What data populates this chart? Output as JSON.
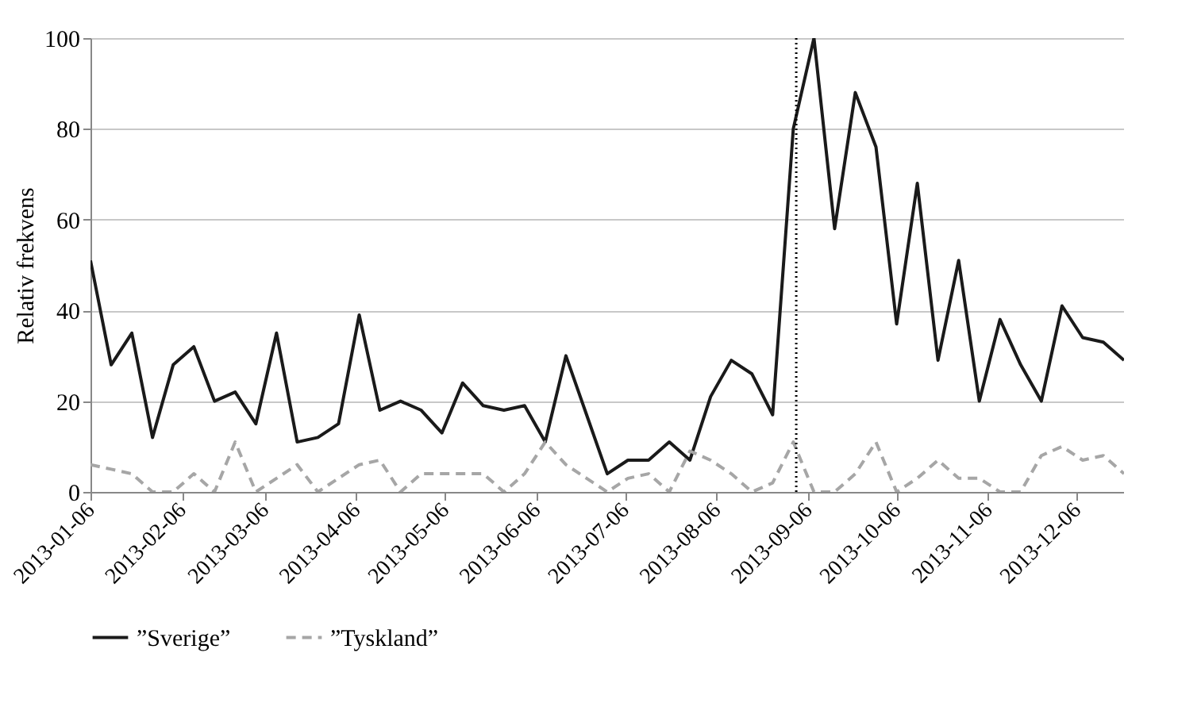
{
  "chart_data": {
    "type": "line",
    "ylabel": "Relativ frekvens",
    "x": [
      "2013-01-06",
      "2013-01-13",
      "2013-01-20",
      "2013-01-27",
      "2013-02-03",
      "2013-02-10",
      "2013-02-17",
      "2013-02-24",
      "2013-03-03",
      "2013-03-10",
      "2013-03-17",
      "2013-03-24",
      "2013-03-31",
      "2013-04-07",
      "2013-04-14",
      "2013-04-21",
      "2013-04-28",
      "2013-05-05",
      "2013-05-12",
      "2013-05-19",
      "2013-05-26",
      "2013-06-02",
      "2013-06-09",
      "2013-06-16",
      "2013-06-23",
      "2013-06-30",
      "2013-07-07",
      "2013-07-14",
      "2013-07-21",
      "2013-07-28",
      "2013-08-04",
      "2013-08-11",
      "2013-08-18",
      "2013-08-25",
      "2013-09-01",
      "2013-09-08",
      "2013-09-15",
      "2013-09-22",
      "2013-09-29",
      "2013-10-06",
      "2013-10-13",
      "2013-10-20",
      "2013-10-27",
      "2013-11-03",
      "2013-11-10",
      "2013-11-17",
      "2013-11-24",
      "2013-12-01",
      "2013-12-08",
      "2013-12-15",
      "2013-12-22"
    ],
    "series": [
      {
        "name": "”Sverige”",
        "color": "#1a1a1a",
        "line_style": "solid",
        "values": [
          51,
          28,
          35,
          12,
          28,
          32,
          20,
          22,
          15,
          35,
          11,
          12,
          15,
          39,
          18,
          20,
          18,
          13,
          24,
          19,
          18,
          19,
          11,
          30,
          17,
          4,
          7,
          7,
          11,
          7,
          21,
          29,
          26,
          17,
          80,
          100,
          58,
          88,
          76,
          37,
          68,
          29,
          51,
          20,
          38,
          28,
          20,
          41,
          34,
          33,
          29
        ]
      },
      {
        "name": "”Tyskland”",
        "color": "#a6a6a6",
        "line_style": "dashed",
        "values": [
          6,
          5,
          4,
          0,
          0,
          4,
          0,
          11,
          0,
          3,
          6,
          0,
          3,
          6,
          7,
          0,
          4,
          4,
          4,
          4,
          0,
          4,
          11,
          6,
          3,
          0,
          3,
          4,
          0,
          9,
          7,
          4,
          0,
          2,
          11,
          0,
          0,
          4,
          11,
          0,
          3,
          7,
          3,
          3,
          0,
          0,
          8,
          10,
          7,
          8,
          4
        ]
      }
    ],
    "xlim": [
      "2013-01-06",
      "2013-12-22"
    ],
    "xticks": [
      {
        "value": "2013-01-06",
        "label": "2013-01-06"
      },
      {
        "value": "2013-02-06",
        "label": "2013-02-06"
      },
      {
        "value": "2013-03-06",
        "label": "2013-03-06"
      },
      {
        "value": "2013-04-06",
        "label": "2013-04-06"
      },
      {
        "value": "2013-05-06",
        "label": "2013-05-06"
      },
      {
        "value": "2013-06-06",
        "label": "2013-06-06"
      },
      {
        "value": "2013-07-06",
        "label": "2013-07-06"
      },
      {
        "value": "2013-08-06",
        "label": "2013-08-06"
      },
      {
        "value": "2013-09-06",
        "label": "2013-09-06"
      },
      {
        "value": "2013-10-06",
        "label": "2013-10-06"
      },
      {
        "value": "2013-11-06",
        "label": "2013-11-06"
      },
      {
        "value": "2013-12-06",
        "label": "2013-12-06"
      }
    ],
    "ylim": [
      0,
      100
    ],
    "yticks": [
      0,
      20,
      40,
      60,
      80,
      100
    ],
    "ref_lines": [
      {
        "axis": "x",
        "value": "2013-09-02",
        "color": "#000000",
        "line_style": "dotted"
      }
    ],
    "grid": "y",
    "legend": "bottom"
  }
}
